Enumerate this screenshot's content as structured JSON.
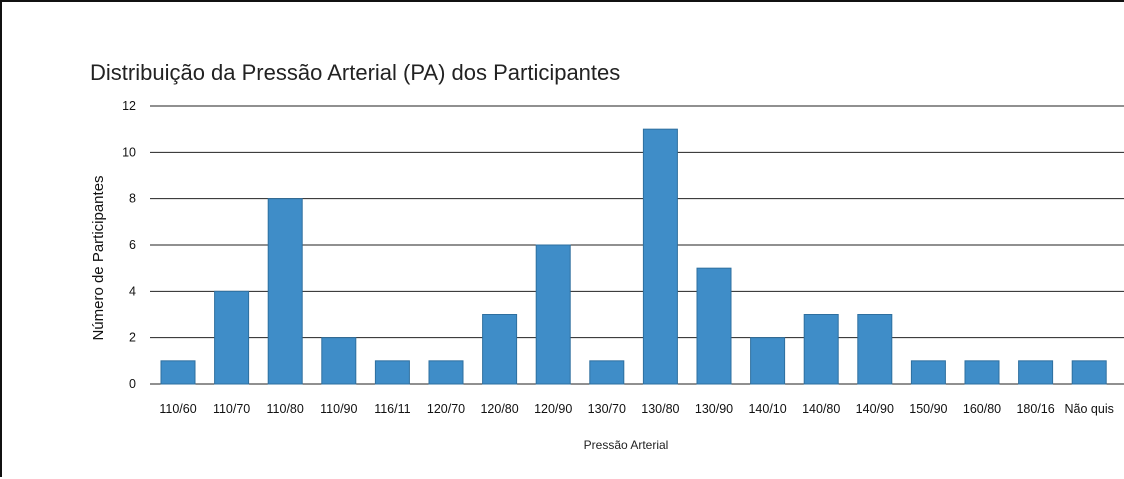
{
  "chart_data": {
    "type": "bar",
    "title": "Distribuição da Pressão Arterial (PA) dos Participantes",
    "xlabel": "Pressão Arterial",
    "ylabel": "Número de Participantes",
    "ylim": [
      0,
      12
    ],
    "yticks": [
      0,
      2,
      4,
      6,
      8,
      10,
      12
    ],
    "grid": true,
    "legend": "none",
    "bar_color": "#3f8dc8",
    "categories": [
      "110/60",
      "110/70",
      "110/80",
      "110/90",
      "116/11",
      "120/70",
      "120/80",
      "120/90",
      "130/70",
      "130/80",
      "130/90",
      "140/10",
      "140/80",
      "140/90",
      "150/90",
      "160/80",
      "180/16",
      "Não quis"
    ],
    "values": [
      1,
      4,
      8,
      2,
      1,
      1,
      3,
      6,
      1,
      11,
      5,
      2,
      3,
      3,
      1,
      1,
      1,
      1
    ]
  }
}
